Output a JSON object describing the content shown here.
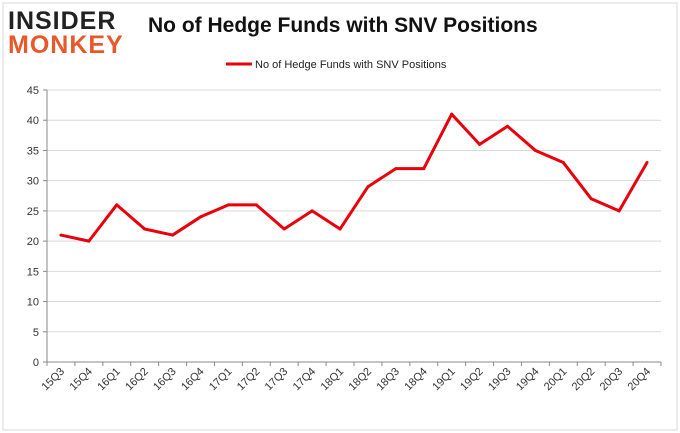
{
  "logo": {
    "line1": "INSIDER",
    "line2": "MONKEY"
  },
  "chart_data": {
    "type": "line",
    "title": "No of Hedge Funds with SNV Positions",
    "xlabel": "",
    "ylabel": "",
    "categories": [
      "15Q3",
      "15Q4",
      "16Q1",
      "16Q2",
      "16Q3",
      "16Q4",
      "17Q1",
      "17Q2",
      "17Q3",
      "17Q4",
      "18Q1",
      "18Q2",
      "18Q3",
      "18Q4",
      "19Q1",
      "19Q2",
      "19Q3",
      "19Q4",
      "20Q1",
      "20Q2",
      "20Q3",
      "20Q4"
    ],
    "series": [
      {
        "name": "No of Hedge Funds with SNV Positions",
        "values": [
          21,
          20,
          26,
          22,
          21,
          24,
          26,
          26,
          22,
          25,
          22,
          29,
          32,
          32,
          41,
          36,
          39,
          35,
          33,
          27,
          25,
          33
        ],
        "color": "#e8000b"
      }
    ],
    "ylim": [
      0,
      45
    ],
    "yticks": [
      0,
      5,
      10,
      15,
      20,
      25,
      30,
      35,
      40,
      45
    ],
    "grid": true,
    "legend": "top-center"
  }
}
